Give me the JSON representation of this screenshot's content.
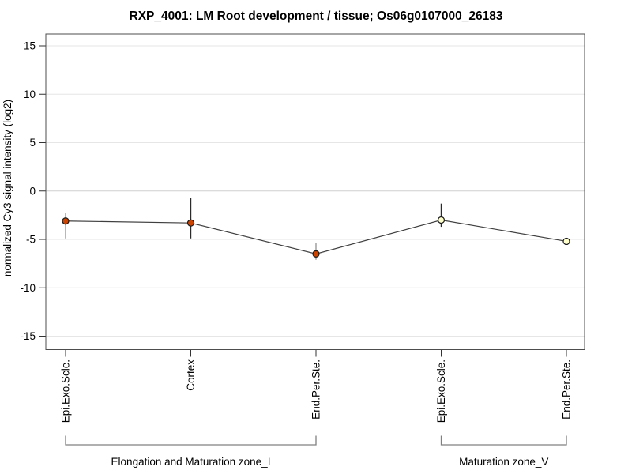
{
  "chart_data": {
    "type": "line",
    "title": "RXP_4001: LM Root development / tissue; Os06g0107000_26183",
    "xlabel": "",
    "ylabel": "normalized Cy3 signal intensity (log2)",
    "ylim": [
      -16.3,
      16.3
    ],
    "yticks": [
      15,
      10,
      5,
      0,
      -5,
      -10,
      -15
    ],
    "grid": "horizontal",
    "legend": "none",
    "categories": [
      "Epi.Exo.Scle.",
      "Cortex",
      "End.Per.Ste.",
      "Epi.Exo.Scle.",
      "End.Per.Ste."
    ],
    "series": [
      {
        "name": "normalized Cy3 signal intensity",
        "points": [
          {
            "label": "Epi.Exo.Scle.",
            "value": -3.1,
            "err_hi": -2.3,
            "err_lo": -4.9,
            "marker_fill": "#cc4400",
            "errbar_color": "#999999"
          },
          {
            "label": "Cortex",
            "value": -3.3,
            "err_hi": -0.7,
            "err_lo": -4.9,
            "marker_fill": "#cc4400",
            "errbar_color": "#2b2b2b"
          },
          {
            "label": "End.Per.Ste.",
            "value": -6.5,
            "err_hi": -5.4,
            "err_lo": -7.1,
            "marker_fill": "#cc4400",
            "errbar_color": "#999999"
          },
          {
            "label": "Epi.Exo.Scle.",
            "value": -3.0,
            "err_hi": -1.3,
            "err_lo": -3.7,
            "marker_fill": "#ffffcc",
            "errbar_color": "#2b2b2b"
          },
          {
            "label": "End.Per.Ste.",
            "value": -5.2,
            "err_hi": null,
            "err_lo": null,
            "marker_fill": "#ffffcc",
            "errbar_color": "#999999"
          }
        ]
      }
    ],
    "groups": [
      {
        "label": "Elongation and Maturation zone_I",
        "from": 0,
        "to": 2
      },
      {
        "label": "Maturation zone_V",
        "from": 3,
        "to": 4
      }
    ],
    "colors": {
      "line": "#404040",
      "marker_stroke": "#1a1a1a",
      "grid": "#e6e6e6",
      "grid_zero": "#cfcfcf",
      "frame": "#4d4d4d",
      "tick": "#333333",
      "bracket": "#808080"
    }
  }
}
